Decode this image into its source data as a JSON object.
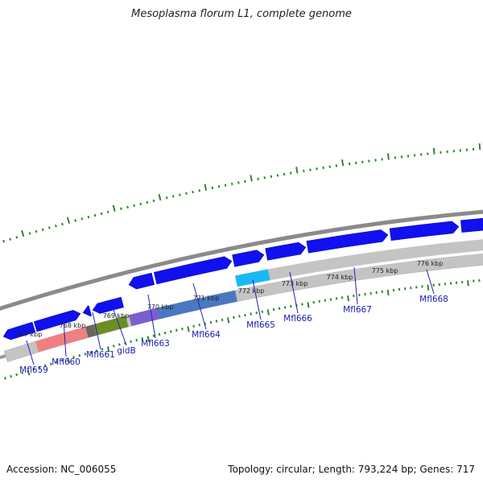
{
  "title": "Mesoplasma florum L1, complete genome",
  "footer": {
    "accession": "Accession: NC_006055",
    "summary": "Topology: circular; Length: 793,224 bp; Genes: 717"
  },
  "colors": {
    "forward_gene": "#1010f0",
    "reverse_gene": "#1010f0",
    "backbone": "#888888",
    "tick": "#2a8a2a"
  },
  "kbp_labels": [
    "767 kbp",
    "768 kbp",
    "769 kbp",
    "770 kbp",
    "771 kbp",
    "772 kbp",
    "773 kbp",
    "774 kbp",
    "775 kbp",
    "776 kbp"
  ],
  "gene_labels": [
    "Mfl659",
    "Mfl660",
    "Mfl661",
    "gidB",
    "Mfl663",
    "Mfl664",
    "Mfl665",
    "Mfl666",
    "Mfl667",
    "Mfl668"
  ]
}
